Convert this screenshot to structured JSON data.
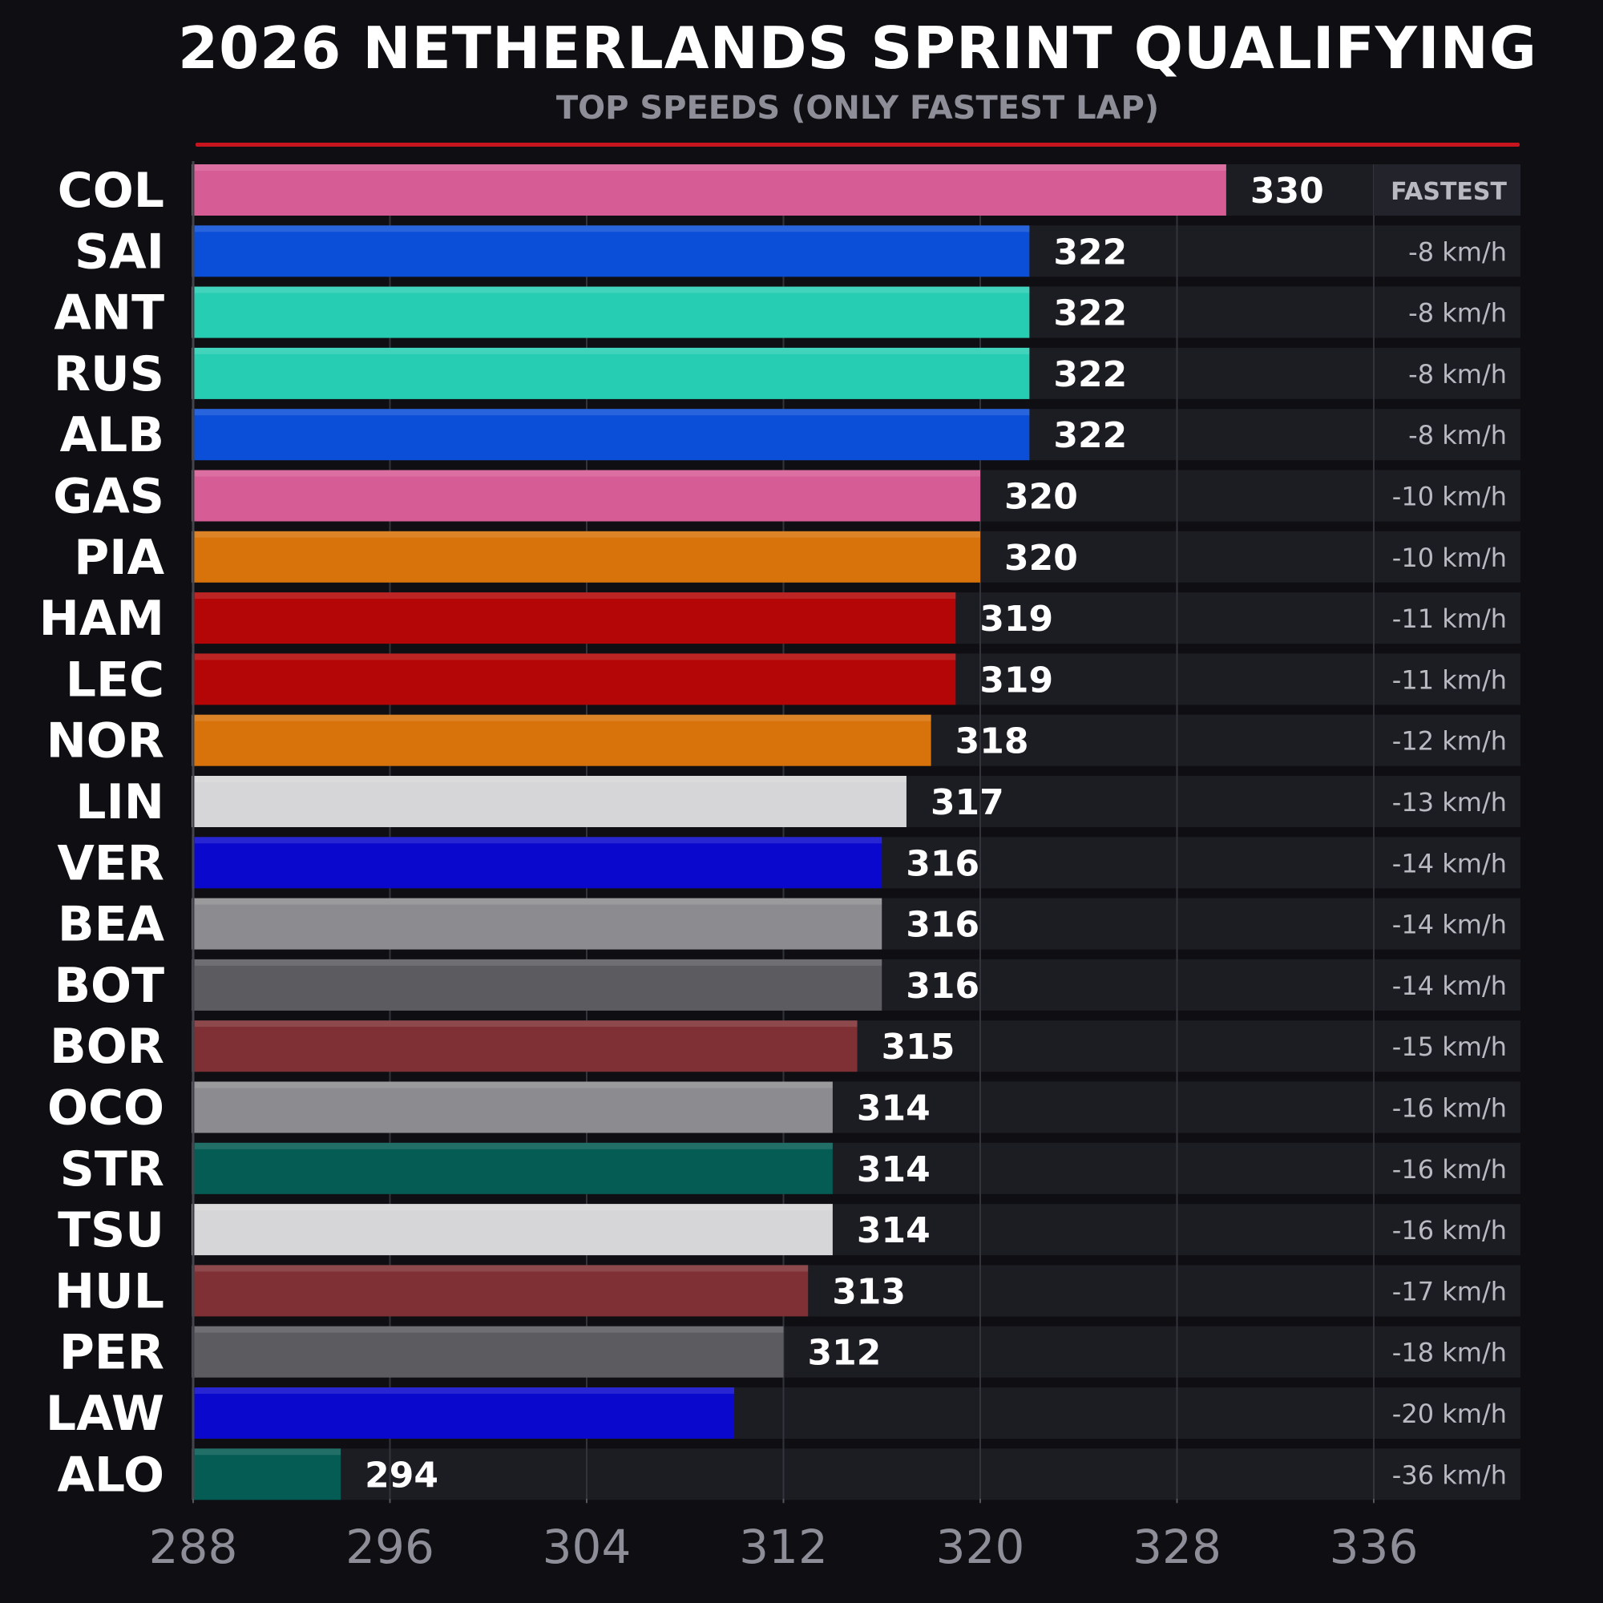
{
  "chart_data": {
    "type": "bar",
    "orientation": "horizontal",
    "title": "2026 NETHERLANDS SPRINT QUALIFYING",
    "subtitle": "TOP SPEEDS (ONLY FASTEST LAP)",
    "xlim": [
      288,
      342
    ],
    "x_ticks": [
      "288",
      "296",
      "304",
      "312",
      "320",
      "328",
      "336"
    ],
    "fastest_label": "FASTEST",
    "grid": true,
    "rows": [
      {
        "driver": "COL",
        "value": 330,
        "value_label": "330",
        "gap": "FASTEST",
        "color": "#d65c96"
      },
      {
        "driver": "SAI",
        "value": 322,
        "value_label": "322",
        "gap": "-8 km/h",
        "color": "#0b4fd8"
      },
      {
        "driver": "ANT",
        "value": 322,
        "value_label": "322",
        "gap": "-8 km/h",
        "color": "#27cdb3"
      },
      {
        "driver": "RUS",
        "value": 322,
        "value_label": "322",
        "gap": "-8 km/h",
        "color": "#27cdb3"
      },
      {
        "driver": "ALB",
        "value": 322,
        "value_label": "322",
        "gap": "-8 km/h",
        "color": "#0b4fd8"
      },
      {
        "driver": "GAS",
        "value": 320,
        "value_label": "320",
        "gap": "-10 km/h",
        "color": "#d65c96"
      },
      {
        "driver": "PIA",
        "value": 320,
        "value_label": "320",
        "gap": "-10 km/h",
        "color": "#d8720a"
      },
      {
        "driver": "HAM",
        "value": 319,
        "value_label": "319",
        "gap": "-11 km/h",
        "color": "#b40606"
      },
      {
        "driver": "LEC",
        "value": 319,
        "value_label": "319",
        "gap": "-11 km/h",
        "color": "#b40606"
      },
      {
        "driver": "NOR",
        "value": 318,
        "value_label": "318",
        "gap": "-12 km/h",
        "color": "#d8720a"
      },
      {
        "driver": "LIN",
        "value": 317,
        "value_label": "317",
        "gap": "-13 km/h",
        "color": "#d6d6d8"
      },
      {
        "driver": "VER",
        "value": 316,
        "value_label": "316",
        "gap": "-14 km/h",
        "color": "#0a08cc"
      },
      {
        "driver": "BEA",
        "value": 316,
        "value_label": "316",
        "gap": "-14 km/h",
        "color": "#8c8c90"
      },
      {
        "driver": "BOT",
        "value": 316,
        "value_label": "316",
        "gap": "-14 km/h",
        "color": "#5c5c60"
      },
      {
        "driver": "BOR",
        "value": 315,
        "value_label": "315",
        "gap": "-15 km/h",
        "color": "#7e3034"
      },
      {
        "driver": "OCO",
        "value": 314,
        "value_label": "314",
        "gap": "-16 km/h",
        "color": "#8c8c90"
      },
      {
        "driver": "STR",
        "value": 314,
        "value_label": "314",
        "gap": "-16 km/h",
        "color": "#045c54"
      },
      {
        "driver": "TSU",
        "value": 314,
        "value_label": "314",
        "gap": "-16 km/h",
        "color": "#d6d6d8"
      },
      {
        "driver": "HUL",
        "value": 313,
        "value_label": "313",
        "gap": "-17 km/h",
        "color": "#7e3034"
      },
      {
        "driver": "PER",
        "value": 312,
        "value_label": "312",
        "gap": "-18 km/h",
        "color": "#5c5c60"
      },
      {
        "driver": "LAW",
        "value": 310,
        "value_label": "",
        "gap": "-20 km/h",
        "color": "#0a08cc"
      },
      {
        "driver": "ALO",
        "value": 294,
        "value_label": "294",
        "gap": "-36 km/h",
        "color": "#045c54"
      }
    ]
  },
  "colors": {
    "background": "#0f0f13",
    "track": "#1c1c23",
    "accent": "#c8141e",
    "tick_text": "#8e8e99",
    "gap_text": "#b9b9c2"
  }
}
